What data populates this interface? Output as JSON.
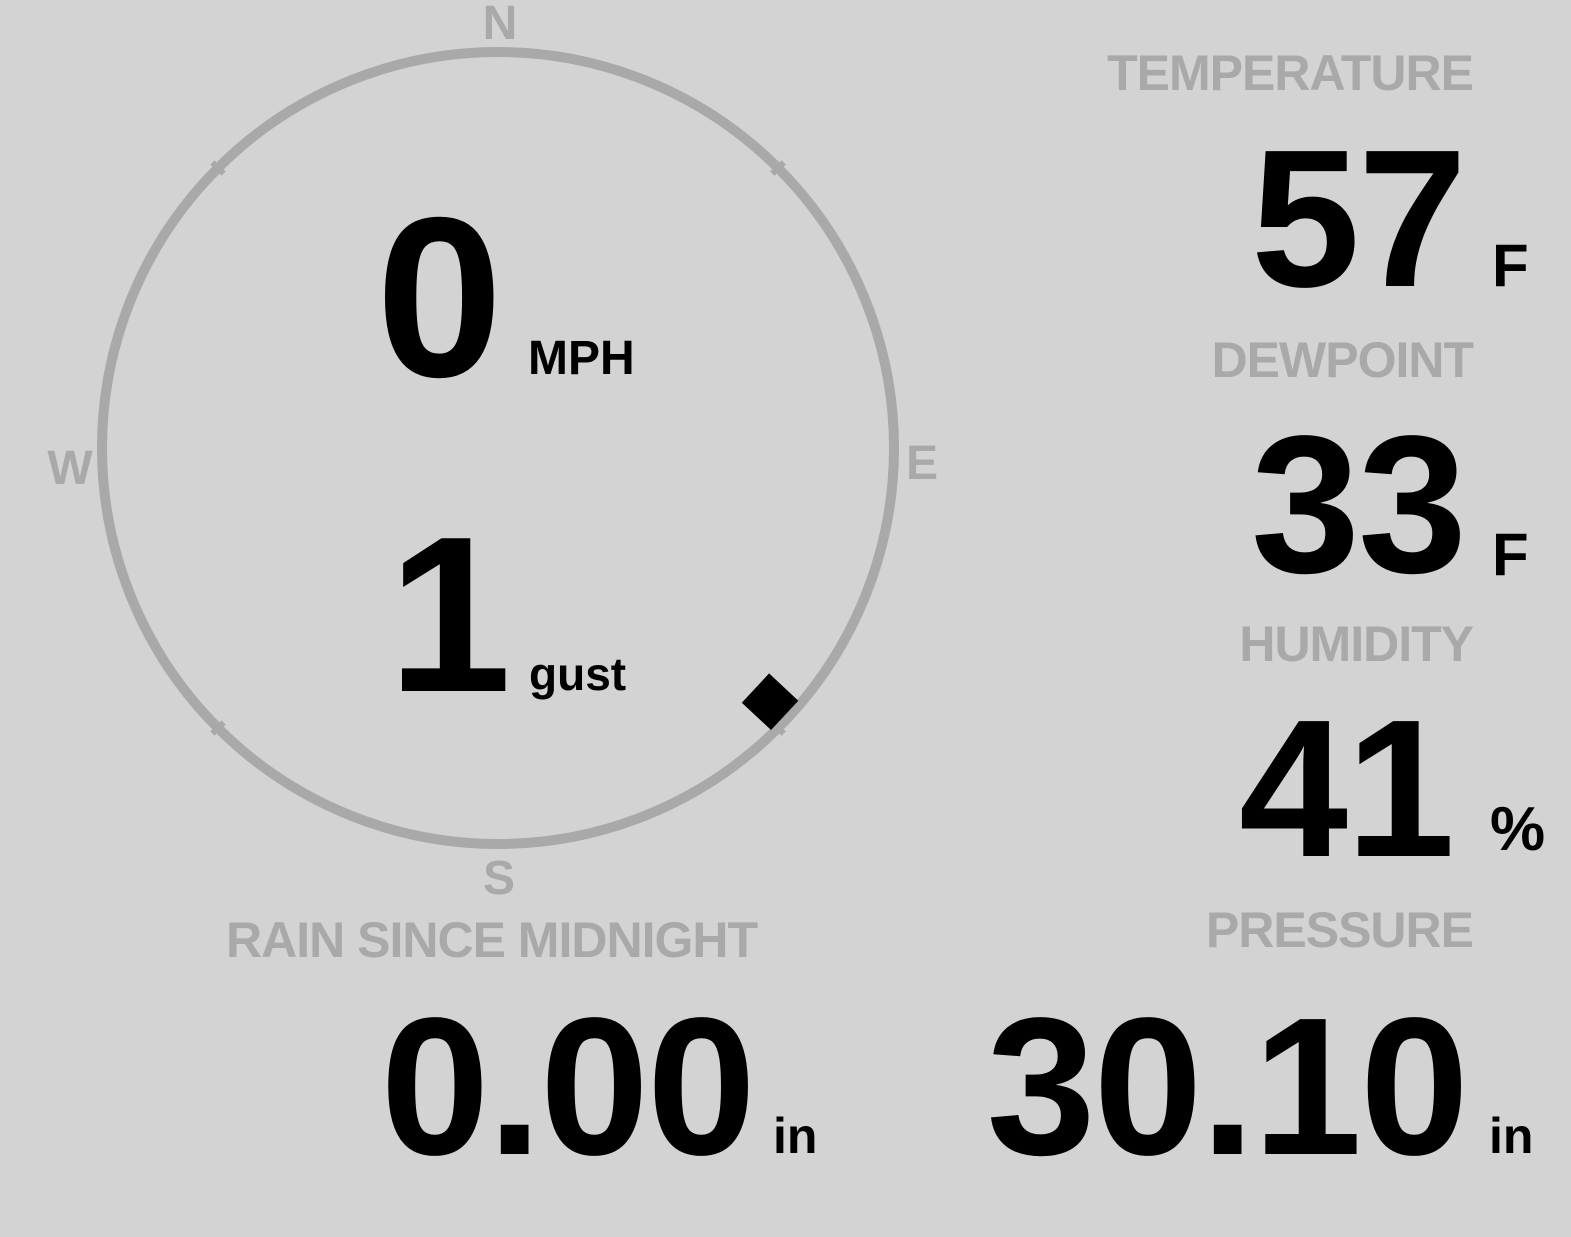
{
  "compass": {
    "north": "N",
    "east": "E",
    "south": "S",
    "west": "W",
    "wind_direction_deg": 133,
    "ring_color": "#a9a9a9",
    "wind_speed": "0",
    "wind_speed_unit": "MPH",
    "gust": "1",
    "gust_label": "gust"
  },
  "temperature": {
    "label": "TEMPERATURE",
    "value": "57",
    "unit": "F"
  },
  "dewpoint": {
    "label": "DEWPOINT",
    "value": "33",
    "unit": "F"
  },
  "humidity": {
    "label": "HUMIDITY",
    "value": "41",
    "unit": "%"
  },
  "pressure": {
    "label": "PRESSURE",
    "value": "30.10",
    "unit": "in"
  },
  "rain": {
    "label": "RAIN SINCE MIDNIGHT",
    "value": "0.00",
    "unit": "in"
  },
  "colors": {
    "background": "#d3d3d3",
    "label": "#a9a9a9",
    "value": "#000000"
  }
}
